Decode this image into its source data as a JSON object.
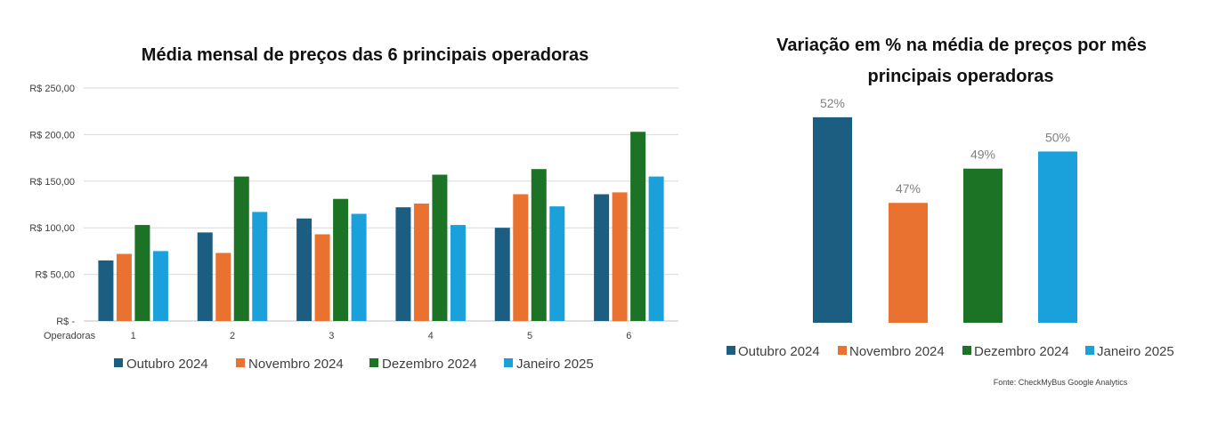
{
  "colors": {
    "outubro": "#1b5e82",
    "novembro": "#ea7231",
    "dezembro": "#1c7326",
    "janeiro": "#1aa1dc",
    "grid": "#d9d9d9",
    "axis": "#bfbfbf"
  },
  "chart_data": [
    {
      "type": "bar",
      "title": "Média mensal de preços das 6 principais operadoras",
      "xlabel": "Operadoras",
      "ylabel": "",
      "categories": [
        "1",
        "2",
        "3",
        "4",
        "5",
        "6"
      ],
      "ylim": [
        0,
        250
      ],
      "yticks": [
        0,
        50,
        100,
        150,
        200,
        250
      ],
      "ytick_labels": [
        "R$ -",
        "R$ 50,00",
        "R$ 100,00",
        "R$ 150,00",
        "R$ 200,00",
        "R$ 250,00"
      ],
      "grid": true,
      "legend_position": "bottom",
      "series": [
        {
          "name": "Outubro 2024",
          "color_key": "outubro",
          "values": [
            65,
            95,
            110,
            122,
            100,
            136
          ]
        },
        {
          "name": "Novembro 2024",
          "color_key": "novembro",
          "values": [
            72,
            73,
            93,
            126,
            136,
            138
          ]
        },
        {
          "name": "Dezembro 2024",
          "color_key": "dezembro",
          "values": [
            103,
            155,
            131,
            157,
            163,
            203
          ]
        },
        {
          "name": "Janeiro 2025",
          "color_key": "janeiro",
          "values": [
            75,
            117,
            115,
            103,
            123,
            155
          ]
        }
      ]
    },
    {
      "type": "bar",
      "title": "Variação em % na média de preços por mês principais operadoras",
      "title_lines": [
        "Variação em % na média de preços por mês",
        "principais operadoras"
      ],
      "xlabel": "",
      "ylabel": "",
      "ylim": [
        40,
        53.5
      ],
      "grid": false,
      "legend_position": "bottom",
      "source": "Fonte: CheckMyBus Google Analytics",
      "series": [
        {
          "name": "Outubro 2024",
          "color_key": "outubro",
          "value": 52,
          "label": "52%"
        },
        {
          "name": "Novembro 2024",
          "color_key": "novembro",
          "value": 47,
          "label": "47%"
        },
        {
          "name": "Dezembro 2024",
          "color_key": "dezembro",
          "value": 49,
          "label": "49%"
        },
        {
          "name": "Janeiro 2025",
          "color_key": "janeiro",
          "value": 50,
          "label": "50%"
        }
      ]
    }
  ]
}
